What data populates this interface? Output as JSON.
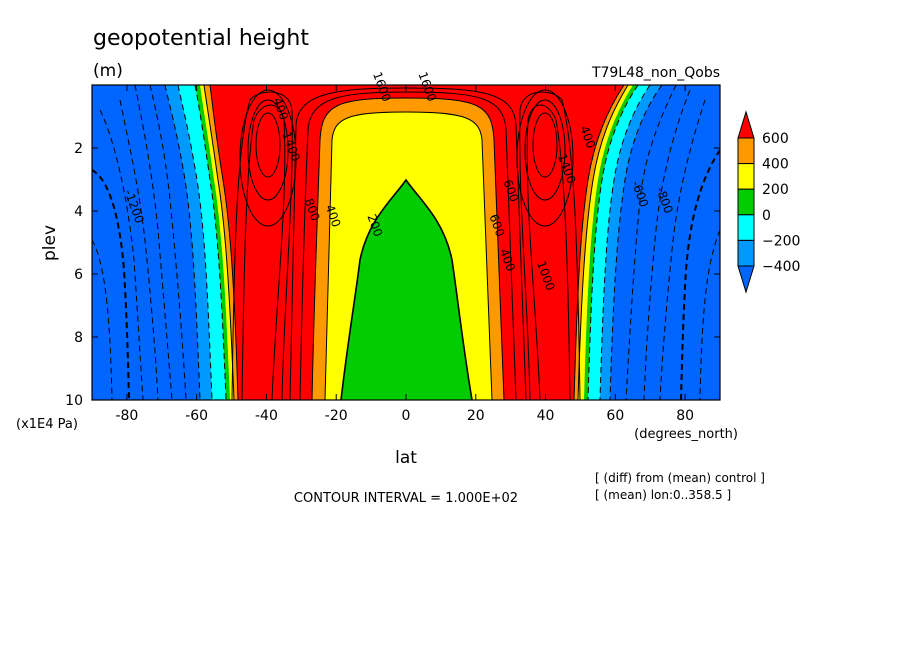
{
  "chart_data": {
    "type": "heatmap",
    "title": "geopotential height",
    "units": "(m)",
    "run_label": "T79L48_non_Qobs",
    "xlabel": "lat",
    "x_units": "(degrees_north)",
    "ylabel": "plev",
    "y_units": "(x1E4 Pa)",
    "xlim": [
      -90,
      90
    ],
    "ylim": [
      10,
      0
    ],
    "x_ticks": [
      "-80",
      "-60",
      "-40",
      "-20",
      "0",
      "20",
      "40",
      "60",
      "80"
    ],
    "y_ticks": [
      "2",
      "4",
      "6",
      "8",
      "10"
    ],
    "contour_interval_text": "CONTOUR INTERVAL = 1.000E+02",
    "notes": [
      "[ (diff) from (mean) control ]",
      "[ (mean) lon:0..358.5 ]"
    ],
    "colorbar": {
      "levels": [
        "600",
        "400",
        "200",
        "0",
        "−200",
        "−400"
      ],
      "colors": [
        "#ff0000",
        "#ff9900",
        "#ffff00",
        "#00cc00",
        "#00ffff",
        "#0099ff",
        "#0066ff"
      ]
    },
    "regions": [
      {
        "range": "above 600",
        "color": "#ff0000"
      },
      {
        "range": "400 to 600",
        "color": "#ff9900"
      },
      {
        "range": "200 to 400",
        "color": "#ffff00"
      },
      {
        "range": "0 to 200",
        "color": "#00cc00"
      },
      {
        "range": "-200 to 0",
        "color": "#00ffff"
      },
      {
        "range": "-400 to -200",
        "color": "#0099ff"
      },
      {
        "range": "below -400",
        "color": "#0066ff"
      }
    ],
    "contour_labels": [
      {
        "text": "1600",
        "lat": -8,
        "plev": 0.1
      },
      {
        "text": "1600",
        "lat": 5,
        "plev": 0.1
      },
      {
        "text": "400",
        "lat": -37,
        "plev": 0.8
      },
      {
        "text": "1400",
        "lat": -34,
        "plev": 2.0
      },
      {
        "text": "-1200",
        "lat": -79,
        "plev": 3.9
      },
      {
        "text": "800",
        "lat": -28,
        "plev": 4.0
      },
      {
        "text": "400",
        "lat": -22,
        "plev": 4.2
      },
      {
        "text": "200",
        "lat": -10,
        "plev": 4.5
      },
      {
        "text": "400",
        "lat": 28,
        "plev": 5.6
      },
      {
        "text": "600",
        "lat": 25,
        "plev": 4.5
      },
      {
        "text": "600",
        "lat": 29,
        "plev": 3.4
      },
      {
        "text": "1000",
        "lat": 39,
        "plev": 6.1
      },
      {
        "text": "1400",
        "lat": 45,
        "plev": 2.7
      },
      {
        "text": "400",
        "lat": 51,
        "plev": 1.7
      },
      {
        "text": "-600",
        "lat": 66,
        "plev": 3.5
      },
      {
        "text": "-800",
        "lat": 73,
        "plev": 3.7
      }
    ]
  }
}
